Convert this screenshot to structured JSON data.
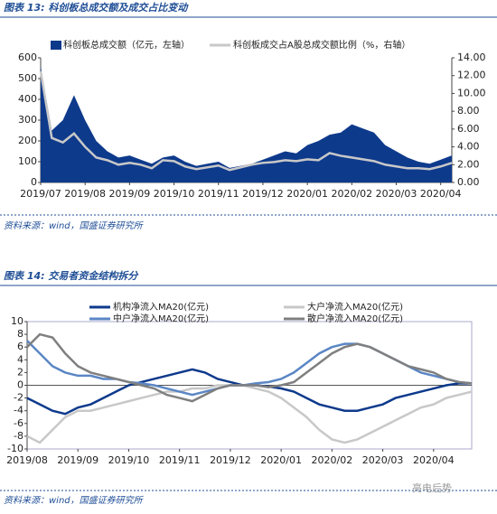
{
  "charts": [
    {
      "type": "area",
      "title": "图表 13:  科创板总成交额及成交占比变动",
      "source": "资料来源：wind，国盛证券研究所",
      "categories": [
        "2019/07",
        null,
        null,
        null,
        "2019/08",
        null,
        null,
        null,
        "2019/09",
        null,
        null,
        null,
        "2019/10",
        null,
        null,
        null,
        "2019/11",
        null,
        null,
        null,
        "2019/12",
        null,
        null,
        null,
        "2020/01",
        null,
        null,
        null,
        "2020/02",
        null,
        null,
        null,
        "2020/03",
        null,
        null,
        null,
        "2020/04",
        null
      ],
      "series": [
        {
          "name": "科创板总成交额（亿元，左轴）",
          "color": "#0e3a8c",
          "values": [
            560,
            250,
            300,
            420,
            300,
            200,
            150,
            120,
            130,
            110,
            90,
            120,
            130,
            100,
            80,
            90,
            100,
            70,
            80,
            90,
            110,
            130,
            150,
            140,
            180,
            200,
            230,
            240,
            280,
            260,
            240,
            180,
            150,
            120,
            100,
            90,
            110,
            130
          ]
        },
        {
          "name": "科创板成交占A股总成交额比例（%，右轴）",
          "color": "#c8c8c8",
          "axis": "y2",
          "values": [
            12.5,
            5,
            4.5,
            5.5,
            4,
            2.8,
            2.5,
            2,
            2.2,
            2,
            1.6,
            2.5,
            2.4,
            1.8,
            1.5,
            1.7,
            1.9,
            1.4,
            1.7,
            2,
            2.2,
            2.3,
            2.5,
            2.4,
            2.6,
            2.5,
            3.3,
            3,
            2.8,
            2.6,
            2.4,
            2,
            1.8,
            1.6,
            1.6,
            1.5,
            1.8,
            2.2
          ]
        }
      ],
      "ylim": [
        0,
        600
      ],
      "yticks": [
        0,
        100,
        200,
        300,
        400,
        500,
        600
      ],
      "y2lim": [
        0,
        14
      ],
      "y2ticks": [
        {
          "value": 0,
          "label": "0.00"
        },
        {
          "value": 2,
          "label": "2.00"
        },
        {
          "value": 4,
          "label": "4.00"
        },
        {
          "value": 6,
          "label": "6.00"
        },
        {
          "value": 8,
          "label": "8.00"
        },
        {
          "value": 10,
          "label": "10.00"
        },
        {
          "value": 12,
          "label": "12.00"
        },
        {
          "value": 14,
          "label": "14.00"
        }
      ]
    },
    {
      "type": "line",
      "title": "图表 14:  交易者资金结构拆分",
      "source": "资料来源：wind，国盛证券研究所",
      "watermark": "亮电后势",
      "categories": [
        "2019/08",
        null,
        null,
        null,
        "2019/09",
        null,
        null,
        null,
        "2019/10",
        null,
        null,
        null,
        "2019/11",
        null,
        null,
        null,
        "2019/12",
        null,
        null,
        null,
        "2020/01",
        null,
        null,
        null,
        "2020/02",
        null,
        null,
        null,
        "2020/03",
        null,
        null,
        null,
        "2020/04",
        null,
        null,
        null
      ],
      "series": [
        {
          "name": "机构净流入MA20(亿元)",
          "color": "#0e3a8c",
          "values": [
            -2,
            -3,
            -4,
            -4.5,
            -3.5,
            -3,
            -2,
            -1,
            0,
            0.5,
            1,
            1.5,
            2,
            2.5,
            2,
            1,
            0.5,
            0,
            0,
            -0.2,
            -0.5,
            -1,
            -2,
            -3,
            -3.5,
            -4,
            -4,
            -3.5,
            -3,
            -2,
            -1.5,
            -1,
            -0.5,
            0,
            0.3,
            0.3
          ]
        },
        {
          "name": "大户净流入MA20(亿元)",
          "color": "#c8c8c8",
          "values": [
            -8,
            -9,
            -7,
            -5,
            -4,
            -4,
            -3.5,
            -3,
            -2.5,
            -2,
            -1.5,
            -1,
            -1,
            -0.5,
            -0.5,
            0,
            0,
            0,
            -0.5,
            -1,
            -2,
            -3.5,
            -5,
            -7,
            -8.5,
            -9,
            -8.5,
            -7.5,
            -6.5,
            -5.5,
            -4.5,
            -3.5,
            -3,
            -2,
            -1.5,
            -1
          ]
        },
        {
          "name": "中户净流入MA20(亿元)",
          "color": "#5b86c5",
          "values": [
            7,
            5,
            3,
            2,
            1.5,
            1.5,
            1,
            1,
            0.5,
            0.3,
            0,
            -0.5,
            -1,
            -1.5,
            -1,
            -0.5,
            0,
            0,
            0.3,
            0.5,
            1,
            2,
            3.5,
            5,
            6,
            6.5,
            6.5,
            6,
            5,
            4,
            3,
            2,
            1.5,
            1,
            0.5,
            0.3
          ]
        },
        {
          "name": "散户净流入MA20(亿元)",
          "color": "#7f7f7f",
          "values": [
            6,
            8,
            7.5,
            5,
            3,
            2,
            1.5,
            1,
            0.5,
            0,
            -0.5,
            -1.5,
            -2,
            -2.5,
            -1.5,
            -0.5,
            0,
            0,
            0,
            -0.3,
            0,
            0.5,
            2,
            3.5,
            5,
            6,
            6.5,
            6,
            5,
            4,
            3,
            2.5,
            2,
            1,
            0.5,
            0.3
          ]
        }
      ],
      "ylim": [
        -10,
        10
      ],
      "yticks": [
        -10,
        -8,
        -6,
        -4,
        -2,
        0,
        2,
        4,
        6,
        8,
        10
      ]
    }
  ]
}
